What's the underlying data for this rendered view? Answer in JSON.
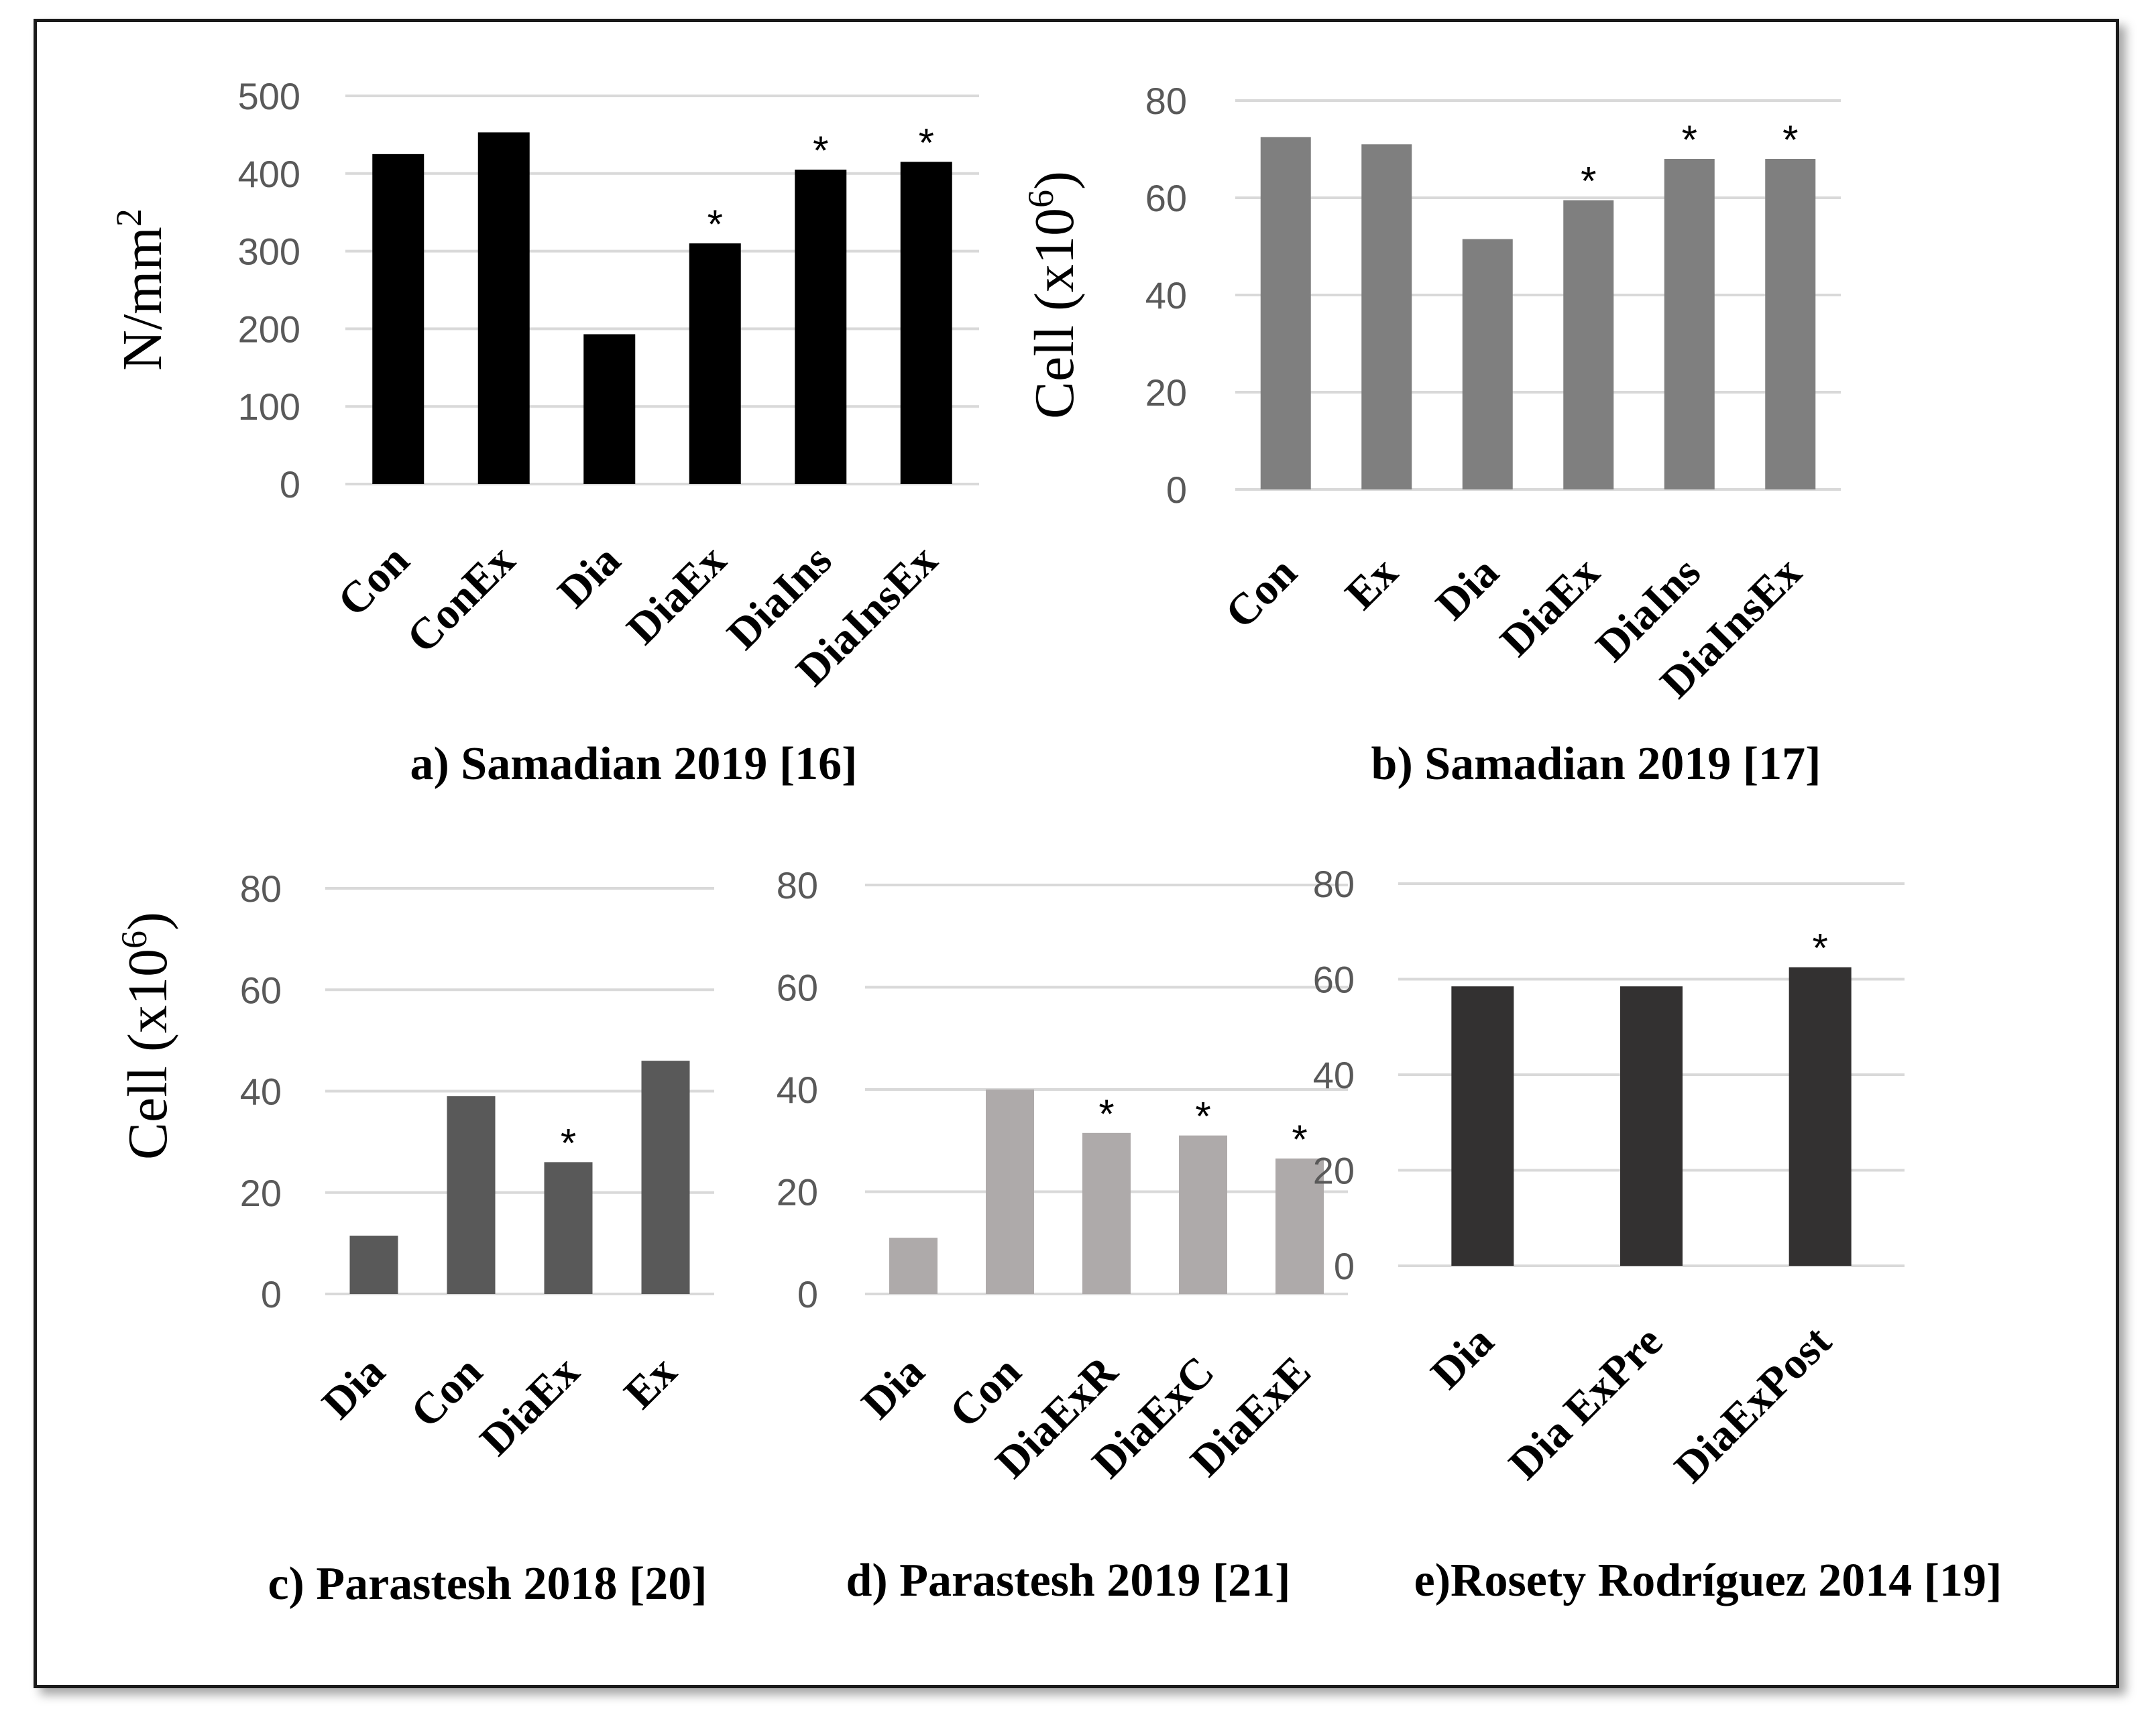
{
  "chart_data": [
    {
      "id": "a",
      "type": "bar",
      "title": "a) Samadian 2019 [16]",
      "ylabel": "N/mm",
      "ylabel_sup": "2",
      "categories": [
        "Con",
        "ConEx",
        "Dia",
        "DiaEx",
        "DiaIns",
        "DiaInsEx"
      ],
      "values": [
        425,
        453,
        193,
        310,
        405,
        415
      ],
      "significant": [
        false,
        false,
        false,
        true,
        true,
        true
      ],
      "marker": "*",
      "ylim": [
        0,
        500
      ],
      "yticks": [
        0,
        100,
        200,
        300,
        400,
        500
      ],
      "color": "#000000"
    },
    {
      "id": "b",
      "type": "bar",
      "title": "b) Samadian 2019 [17]",
      "ylabel": "Cell (x10",
      "ylabel_sup": "6",
      "ylabel_suffix": ")",
      "categories": [
        "Con",
        "Ex",
        "Dia",
        "DiaEx",
        "DiaIns",
        "DiaInsEx"
      ],
      "values": [
        72.5,
        71,
        51.5,
        59.5,
        68,
        68
      ],
      "significant": [
        false,
        false,
        false,
        true,
        true,
        true
      ],
      "marker": "*",
      "ylim": [
        0,
        80
      ],
      "yticks": [
        0,
        20,
        40,
        60,
        80
      ],
      "color": "#7f7f7f"
    },
    {
      "id": "c",
      "type": "bar",
      "title": "c) Parastesh 2018 [20]",
      "ylabel": "Cell (x10",
      "ylabel_sup": "6",
      "ylabel_suffix": ")",
      "categories": [
        "Dia",
        "Con",
        "DiaEx",
        "Ex"
      ],
      "values": [
        11.5,
        39,
        26,
        46
      ],
      "significant": [
        false,
        false,
        true,
        false
      ],
      "marker": "*",
      "ylim": [
        0,
        80
      ],
      "yticks": [
        0,
        20,
        40,
        60,
        80
      ],
      "color": "#595959"
    },
    {
      "id": "d",
      "type": "bar",
      "title": "d) Parastesh 2019 [21]",
      "ylabel": "",
      "categories": [
        "Dia",
        "Con",
        "DiaExR",
        "DiaExC",
        "DiaExE"
      ],
      "values": [
        11,
        40,
        31.5,
        31,
        26.5
      ],
      "significant": [
        false,
        false,
        true,
        true,
        true
      ],
      "marker": "*",
      "ylim": [
        0,
        80
      ],
      "yticks": [
        0,
        20,
        40,
        60,
        80
      ],
      "color": "#aeaaaa"
    },
    {
      "id": "e",
      "type": "bar",
      "title": "e)Rosety Rodríguez 2014 [19]",
      "ylabel": "",
      "categories": [
        "Dia",
        "Dia ExPre",
        "DiaExPost"
      ],
      "values": [
        58.5,
        58.5,
        62.5
      ],
      "significant": [
        false,
        false,
        true
      ],
      "marker": "*",
      "ylim": [
        0,
        80
      ],
      "yticks": [
        0,
        20,
        40,
        60,
        80
      ],
      "color": "#333131"
    }
  ]
}
